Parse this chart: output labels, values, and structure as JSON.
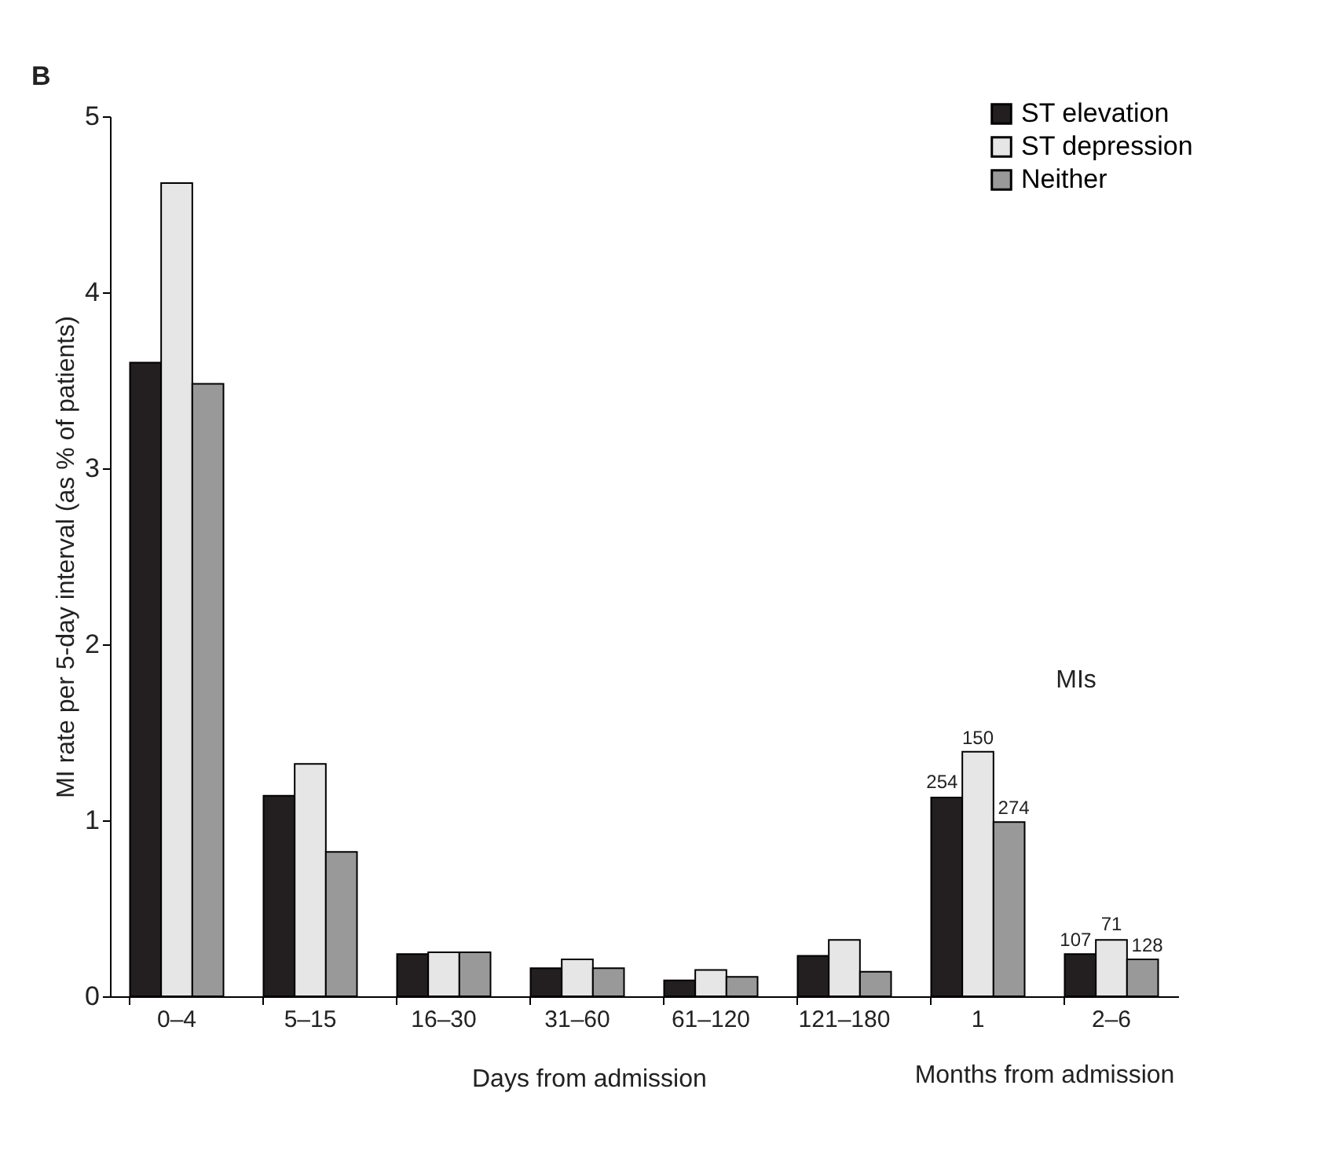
{
  "chart_data": {
    "type": "bar",
    "ylabel": "MI rate per 5-day interval (as % of patients)",
    "xlabel": "Days from admission",
    "categories": [
      "0–4",
      "5–15",
      "16–30",
      "31–60",
      "61–120",
      "121–180",
      "1",
      "2–6"
    ],
    "series": [
      {
        "name": "ST elevation",
        "color": "#231f20",
        "values": [
          3.6,
          1.14,
          0.24,
          0.16,
          0.09,
          0.23,
          1.13,
          0.24
        ]
      },
      {
        "name": "ST depression",
        "color": "#e6e6e6",
        "values": [
          4.62,
          1.32,
          0.25,
          0.21,
          0.15,
          0.32,
          1.39,
          0.32
        ]
      },
      {
        "name": "Neither",
        "color": "#999999",
        "values": [
          3.48,
          0.82,
          0.25,
          0.16,
          0.11,
          0.14,
          0.99,
          0.21
        ]
      }
    ],
    "ylim": [
      0,
      5
    ],
    "yticks": [
      0,
      1,
      2,
      3,
      4,
      5
    ],
    "grid": false,
    "legend": "top right",
    "annotations": [
      "B",
      "MIs",
      "Months from admission",
      "254",
      "150",
      "274",
      "107",
      "71",
      "128"
    ]
  }
}
